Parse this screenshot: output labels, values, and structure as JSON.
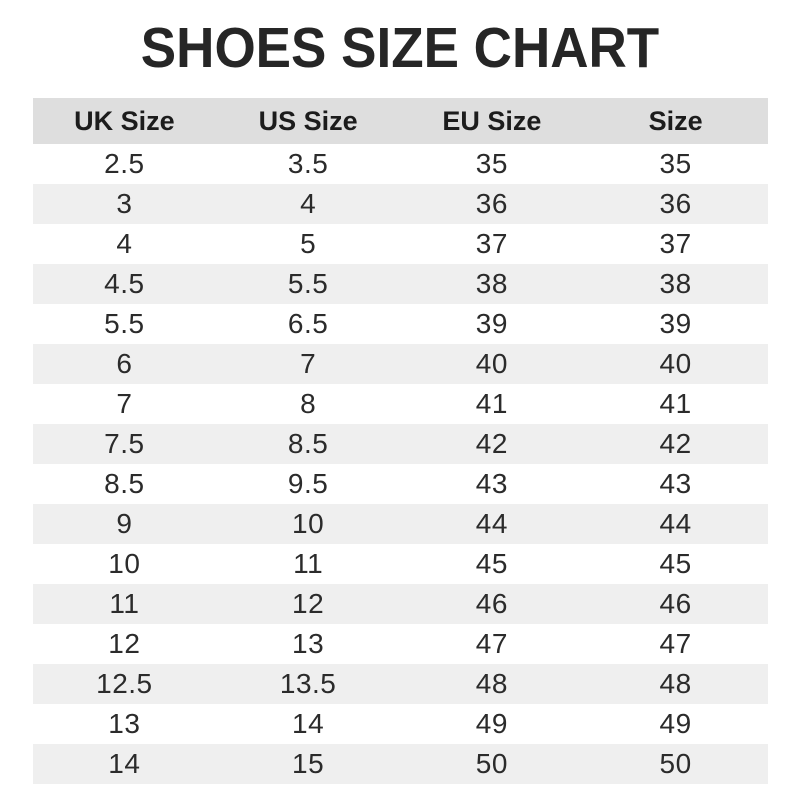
{
  "page": {
    "title": "SHOES SIZE CHART"
  },
  "chart_data": {
    "type": "table",
    "title": "SHOES SIZE CHART",
    "columns": [
      "UK Size",
      "US Size",
      "EU Size",
      "Size"
    ],
    "rows": [
      [
        "2.5",
        "3.5",
        "35",
        "35"
      ],
      [
        "3",
        "4",
        "36",
        "36"
      ],
      [
        "4",
        "5",
        "37",
        "37"
      ],
      [
        "4.5",
        "5.5",
        "38",
        "38"
      ],
      [
        "5.5",
        "6.5",
        "39",
        "39"
      ],
      [
        "6",
        "7",
        "40",
        "40"
      ],
      [
        "7",
        "8",
        "41",
        "41"
      ],
      [
        "7.5",
        "8.5",
        "42",
        "42"
      ],
      [
        "8.5",
        "9.5",
        "43",
        "43"
      ],
      [
        "9",
        "10",
        "44",
        "44"
      ],
      [
        "10",
        "11",
        "45",
        "45"
      ],
      [
        "11",
        "12",
        "46",
        "46"
      ],
      [
        "12",
        "13",
        "47",
        "47"
      ],
      [
        "12.5",
        "13.5",
        "48",
        "48"
      ],
      [
        "13",
        "14",
        "49",
        "49"
      ],
      [
        "14",
        "15",
        "50",
        "50"
      ]
    ],
    "layout": {
      "striped": true,
      "stripe_start": "second-row",
      "grid": false
    }
  },
  "colors": {
    "title_color": "#262626",
    "header_bg": "#dedede",
    "header_text_color": "#1c1c1c",
    "stripe_bg": "#efefef",
    "text_color": "#2b2b2b"
  }
}
